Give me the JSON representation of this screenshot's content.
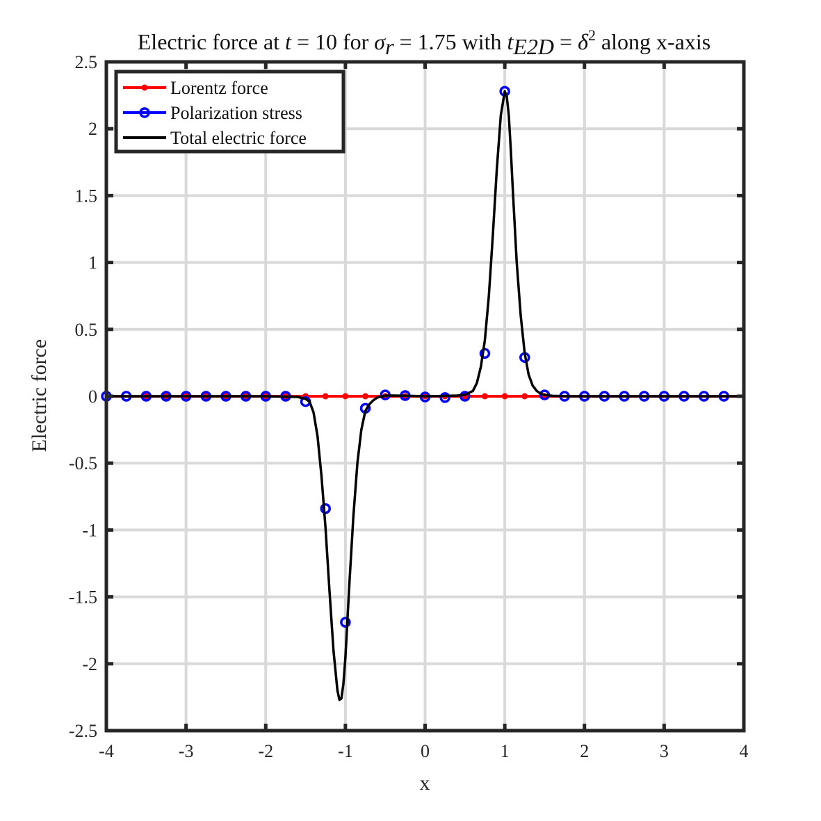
{
  "chart_data": {
    "type": "line",
    "title": {
      "prefix": "Electric force at ",
      "t_symbol": "t",
      "t_value": " = 10 for ",
      "sigma_symbol": "σ",
      "sigma_sub": "r",
      "sigma_value": " = 1.75 with ",
      "tE2D_symbol": "t",
      "tE2D_sub": "E2D",
      "equals": " = ",
      "delta_symbol": "δ",
      "delta_sup": "2",
      "suffix": " along x-axis"
    },
    "xlabel": "x",
    "ylabel": "Electric force",
    "xlim": [
      -4,
      4
    ],
    "ylim": [
      -2.5,
      2.5
    ],
    "xticks": [
      -4,
      -3,
      -2,
      -1,
      0,
      1,
      2,
      3,
      4
    ],
    "xtick_labels": [
      "-4",
      "-3",
      "-2",
      "-1",
      "0",
      "1",
      "2",
      "3",
      "4"
    ],
    "yticks": [
      -2.5,
      -2,
      -1.5,
      -1,
      -0.5,
      0,
      0.5,
      1,
      1.5,
      2,
      2.5
    ],
    "ytick_labels": [
      "-2.5",
      "-2",
      "-1.5",
      "-1",
      "-0.5",
      "0",
      "0.5",
      "1",
      "1.5",
      "2",
      "2.5"
    ],
    "grid": true,
    "legend_position": "top-left",
    "series": [
      {
        "name": "Lorentz force",
        "color": "#ff0000",
        "marker": "filled-dot",
        "x": [
          -3.5,
          -3.25,
          -3.0,
          -2.75,
          -2.5,
          -2.25,
          -2.0,
          -1.75,
          -1.5,
          -1.25,
          -1.0,
          -0.75,
          -0.5,
          -0.25,
          0.0,
          0.25,
          0.5,
          0.75,
          1.0,
          1.25,
          1.5
        ],
        "y": [
          0,
          0,
          0,
          0,
          0,
          0,
          0,
          0,
          0,
          0,
          0,
          0,
          0,
          0,
          0,
          0,
          0,
          0,
          0,
          0,
          0
        ]
      },
      {
        "name": "Polarization stress",
        "color": "#0000ff",
        "marker": "open-circle",
        "x": [
          -4.0,
          -3.75,
          -3.5,
          -3.25,
          -3.0,
          -2.75,
          -2.5,
          -2.25,
          -2.0,
          -1.75,
          -1.5,
          -1.25,
          -1.0,
          -0.75,
          -0.5,
          -0.25,
          0.0,
          0.25,
          0.5,
          0.75,
          1.0,
          1.25,
          1.5,
          1.75,
          2.0,
          2.25,
          2.5,
          2.75,
          3.0,
          3.25,
          3.5,
          3.75
        ],
        "y": [
          0,
          0,
          0,
          0,
          0,
          0,
          0,
          0,
          0,
          0,
          -0.04,
          -0.84,
          -1.69,
          -0.09,
          0.01,
          0.005,
          -0.005,
          -0.01,
          0,
          0.32,
          2.28,
          0.29,
          0.01,
          0,
          0,
          0,
          0,
          0,
          0,
          0,
          0,
          0
        ]
      },
      {
        "name": "Total electric force",
        "color": "#000000",
        "marker": "none",
        "x": [
          -4.0,
          -3.0,
          -2.0,
          -1.6,
          -1.5,
          -1.45,
          -1.4,
          -1.35,
          -1.3,
          -1.25,
          -1.2,
          -1.15,
          -1.1,
          -1.075,
          -1.05,
          -1.025,
          -1.0,
          -0.95,
          -0.9,
          -0.85,
          -0.8,
          -0.75,
          -0.7,
          -0.65,
          -0.6,
          -0.5,
          -0.4,
          -0.2,
          0.0,
          0.2,
          0.4,
          0.5,
          0.6,
          0.65,
          0.7,
          0.75,
          0.8,
          0.85,
          0.9,
          0.95,
          1.0,
          1.025,
          1.05,
          1.075,
          1.1,
          1.15,
          1.2,
          1.25,
          1.3,
          1.35,
          1.4,
          1.45,
          1.5,
          1.6,
          1.8,
          2.0,
          3.0,
          4.0
        ],
        "y": [
          0,
          0,
          0,
          -0.005,
          -0.02,
          -0.04,
          -0.12,
          -0.3,
          -0.6,
          -0.98,
          -1.45,
          -1.9,
          -2.2,
          -2.27,
          -2.26,
          -2.15,
          -1.95,
          -1.4,
          -0.9,
          -0.5,
          -0.25,
          -0.11,
          -0.06,
          -0.03,
          -0.01,
          0.005,
          0.005,
          0.003,
          0,
          0.002,
          0.005,
          0.01,
          0.04,
          0.1,
          0.22,
          0.42,
          0.75,
          1.2,
          1.7,
          2.1,
          2.28,
          2.24,
          2.1,
          1.85,
          1.55,
          1.0,
          0.6,
          0.32,
          0.16,
          0.08,
          0.04,
          0.02,
          0.01,
          0.003,
          0,
          0,
          0,
          0
        ]
      }
    ]
  }
}
